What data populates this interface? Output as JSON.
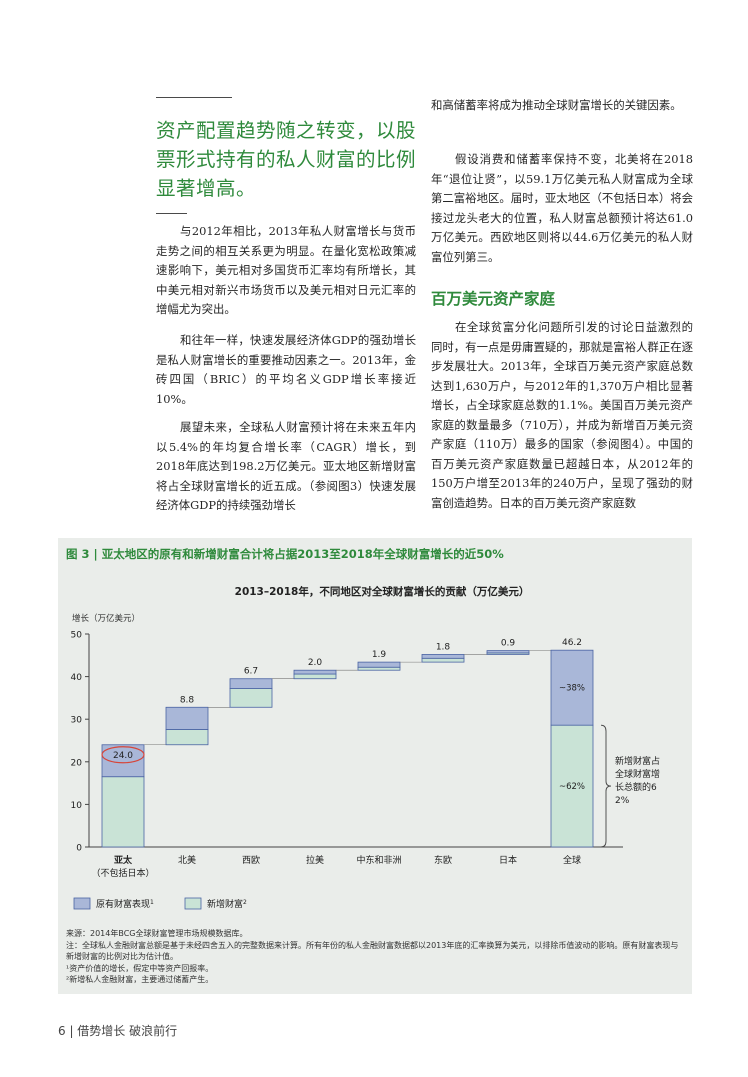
{
  "pull_quote": "资产配置趋势随之转变，以股票形式持有的私人财富的比例显著增高。",
  "left_paragraphs": [
    "与2012年相比，2013年私人财富增长与货币走势之间的相互关系更为明显。在量化宽松政策减速影响下，美元相对多国货币汇率均有所增长，其中美元相对新兴市场货币以及美元相对日元汇率的增幅尤为突出。",
    "和往年一样，快速发展经济体GDP的强劲增长是私人财富增长的重要推动因素之一。2013年，金砖四国（BRIC）的平均名义GDP增长率接近10%。",
    "展望未来，全球私人财富预计将在未来五年内以5.4%的年均复合增长率（CAGR）增长，到2018年底达到198.2万亿美元。亚太地区新增财富将占全球财富增长的近五成。（参阅图3）快速发展经济体GDP的持续强劲增长"
  ],
  "right_paragraphs": [
    "和高储蓄率将成为推动全球财富增长的关键因素。",
    "假设消费和储蓄率保持不变，北美将在2018年“退位让贤”，以59.1万亿美元私人财富成为全球第二富裕地区。届时，亚太地区（不包括日本）将会接过龙头老大的位置，私人财富总额预计将达61.0万亿美元。西欧地区则将以44.6万亿美元的私人财富位列第三。"
  ],
  "section_title": "百万美元资产家庭",
  "section_paragraph": "在全球贫富分化问题所引发的讨论日益激烈的同时，有一点是毋庸置疑的，那就是富裕人群正在逐步发展壮大。2013年，全球百万美元资产家庭总数达到1,630万户，与2012年的1,370万户相比显著增长，占全球家庭总数的1.1%。美国百万美元资产家庭的数量最多（710万），并成为新增百万美元资产家庭（110万）最多的国家（参阅图4）。中国的百万美元资产家庭数量已超越日本，从2012年的150万户增至2013年的240万户，呈现了强劲的财富创造趋势。日本的百万美元资产家庭数",
  "figure": {
    "label": "图 3",
    "separator": " | ",
    "title": "亚太地区的原有和新增财富合计将占据2013至2018年全球财富增长的近50%"
  },
  "colors": {
    "accent_green": "#2f8a3c",
    "existing_wealth": "#a9b7d8",
    "new_wealth": "#c9e3d6",
    "bar_border": "#4a63a3",
    "highlight_ellipse": "#d6453a"
  },
  "chart_data": {
    "type": "bar",
    "subtype": "waterfall",
    "title": "2013–2018年，不同地区对全球财富增长的贡献（万亿美元）",
    "ylabel": "增长（万亿美元）",
    "ylim": [
      0,
      50
    ],
    "yticks": [
      0,
      10,
      20,
      30,
      40,
      50
    ],
    "categories": [
      "亚太",
      "北美",
      "西欧",
      "拉美",
      "中东和非洲",
      "东欧",
      "日本",
      "全球"
    ],
    "category_sublabels": [
      "（不包括日本）",
      "",
      "",
      "",
      "",
      "",
      "",
      ""
    ],
    "bold_categories": [
      "亚太"
    ],
    "values": [
      24.0,
      8.8,
      6.7,
      2.0,
      1.9,
      1.8,
      0.9,
      46.2
    ],
    "value_labels": [
      "24.0",
      "8.8",
      "6.7",
      "2.0",
      "1.9",
      "1.8",
      "0.9",
      "46.2"
    ],
    "highlighted_value_index": 0,
    "bars": [
      {
        "category": "亚太",
        "base": 0.0,
        "new_wealth": 16.5,
        "existing_wealth": 7.5
      },
      {
        "category": "北美",
        "base": 24.0,
        "new_wealth": 3.6,
        "existing_wealth": 5.2
      },
      {
        "category": "西欧",
        "base": 32.8,
        "new_wealth": 4.4,
        "existing_wealth": 2.3
      },
      {
        "category": "拉美",
        "base": 39.5,
        "new_wealth": 1.1,
        "existing_wealth": 0.9
      },
      {
        "category": "中东和非洲",
        "base": 41.5,
        "new_wealth": 0.7,
        "existing_wealth": 1.2
      },
      {
        "category": "东欧",
        "base": 43.4,
        "new_wealth": 0.9,
        "existing_wealth": 0.9
      },
      {
        "category": "日本",
        "base": 45.2,
        "new_wealth": 0.35,
        "existing_wealth": 0.55
      },
      {
        "category": "全球",
        "base": 0.0,
        "new_wealth": 28.6,
        "existing_wealth": 17.6
      }
    ],
    "series": [
      {
        "name": "原有财富表现",
        "superscript": "1"
      },
      {
        "name": "新增财富",
        "superscript": "2"
      }
    ],
    "share_labels": {
      "existing": "~38%",
      "new": "~62%"
    },
    "bracket_note": "新增财富占全球财富增长总额的62%",
    "legend_position": "bottom-left",
    "grid": false
  },
  "footnotes": [
    "来源：2014年BCG全球财富管理市场规模数据库。",
    "注：全球私人金融财富总额是基于未经四舍五入的完整数据来计算。所有年份的私人金融财富数据都以2013年底的汇率换算为美元，以排除币值波动的影响。原有财富表现与新增财富的比例对比为估计值。",
    "¹资产价值的增长，假定中等资产回报率。",
    "²新增私人金融财富，主要通过储蓄产生。"
  ],
  "page_footer": "6 | 借势增长  破浪前行"
}
